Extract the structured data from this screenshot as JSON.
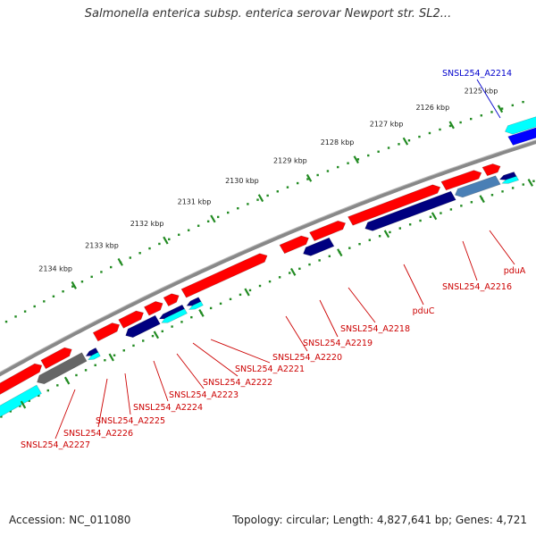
{
  "title": "Salmonella enterica subsp. enterica serovar Newport str. SL2...",
  "footer": {
    "accession": "Accession: NC_011080",
    "summary": "Topology: circular; Length: 4,827,641 bp; Genes: 4,721"
  },
  "colors": {
    "forward_gene": "#ff0000",
    "reverse_gene": "#00ffff",
    "reverse_gene_dark": "#000080",
    "highlight_gene": "#0000ff",
    "backbone": "#888888",
    "tick_major": "#228b22",
    "label_red": "#cc0000",
    "label_blue": "#0000cc"
  },
  "ruler_ticks": [
    {
      "label": "2125 kbp"
    },
    {
      "label": "2126 kbp"
    },
    {
      "label": "2127 kbp"
    },
    {
      "label": "2128 kbp"
    },
    {
      "label": "2129 kbp"
    },
    {
      "label": "2130 kbp"
    },
    {
      "label": "2131 kbp"
    },
    {
      "label": "2132 kbp"
    },
    {
      "label": "2133 kbp"
    },
    {
      "label": "2134 kbp"
    }
  ],
  "gene_labels": [
    {
      "text": "SNSL254_A2214",
      "color": "blue"
    },
    {
      "text": "pduA",
      "color": "red"
    },
    {
      "text": "SNSL254_A2216",
      "color": "red"
    },
    {
      "text": "pduC",
      "color": "red"
    },
    {
      "text": "SNSL254_A2218",
      "color": "red"
    },
    {
      "text": "SNSL254_A2219",
      "color": "red"
    },
    {
      "text": "SNSL254_A2220",
      "color": "red"
    },
    {
      "text": "SNSL254_A2221",
      "color": "red"
    },
    {
      "text": "SNSL254_A2222",
      "color": "red"
    },
    {
      "text": "SNSL254_A2223",
      "color": "red"
    },
    {
      "text": "SNSL254_A2224",
      "color": "red"
    },
    {
      "text": "SNSL254_A2225",
      "color": "red"
    },
    {
      "text": "SNSL254_A2226",
      "color": "red"
    },
    {
      "text": "SNSL254_A2227",
      "color": "red"
    }
  ]
}
